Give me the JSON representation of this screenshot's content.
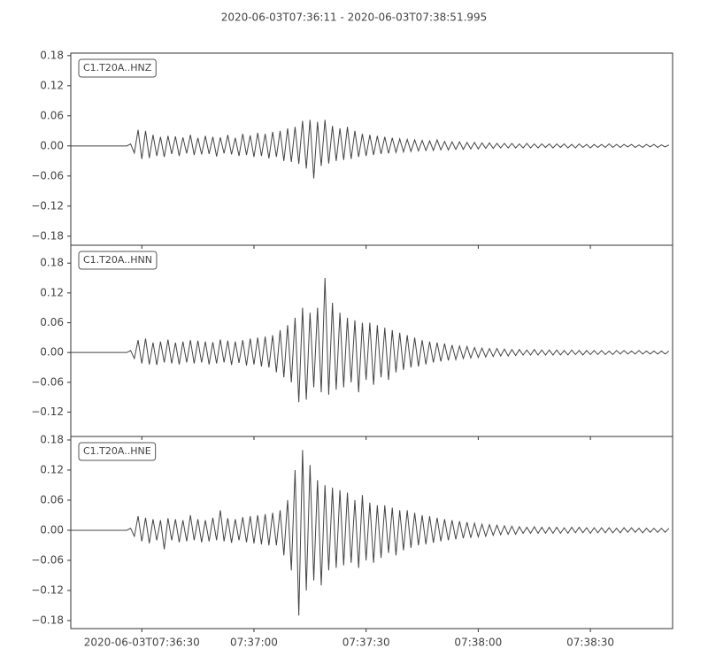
{
  "chart_data": {
    "type": "line",
    "title": "2020-06-03T07:36:11  -  2020-06-03T07:38:51.995",
    "xlim": [
      "07:36:11",
      "07:38:51.995"
    ],
    "xticks": [
      {
        "value": "07:36:30",
        "label": "2020-06-03T07:36:30"
      },
      {
        "value": "07:37:00",
        "label": "07:37:00"
      },
      {
        "value": "07:37:30",
        "label": "07:37:30"
      },
      {
        "value": "07:38:00",
        "label": "07:38:00"
      },
      {
        "value": "07:38:30",
        "label": "07:38:30"
      }
    ],
    "x": [
      "07:36:11",
      "07:36:12",
      "07:36:13",
      "07:36:14",
      "07:36:15",
      "07:36:16",
      "07:36:17",
      "07:36:18",
      "07:36:19",
      "07:36:20",
      "07:36:21",
      "07:36:22",
      "07:36:23",
      "07:36:24",
      "07:36:25",
      "07:36:26",
      "07:36:27",
      "07:36:28",
      "07:36:29",
      "07:36:30",
      "07:36:31",
      "07:36:32",
      "07:36:33",
      "07:36:34",
      "07:36:35",
      "07:36:36",
      "07:36:37",
      "07:36:38",
      "07:36:39",
      "07:36:40",
      "07:36:41",
      "07:36:42",
      "07:36:43",
      "07:36:44",
      "07:36:45",
      "07:36:46",
      "07:36:47",
      "07:36:48",
      "07:36:49",
      "07:36:50",
      "07:36:51",
      "07:36:52",
      "07:36:53",
      "07:36:54",
      "07:36:55",
      "07:36:56",
      "07:36:57",
      "07:36:58",
      "07:36:59",
      "07:37:00",
      "07:37:01",
      "07:37:02",
      "07:37:03",
      "07:37:04",
      "07:37:05",
      "07:37:06",
      "07:37:07",
      "07:37:08",
      "07:37:09",
      "07:37:10",
      "07:37:11",
      "07:37:12",
      "07:37:13",
      "07:37:14",
      "07:37:15",
      "07:37:16",
      "07:37:17",
      "07:37:18",
      "07:37:19",
      "07:37:20",
      "07:37:21",
      "07:37:22",
      "07:37:23",
      "07:37:24",
      "07:37:25",
      "07:37:26",
      "07:37:27",
      "07:37:28",
      "07:37:29",
      "07:37:30",
      "07:37:31",
      "07:37:32",
      "07:37:33",
      "07:37:34",
      "07:37:35",
      "07:37:36",
      "07:37:37",
      "07:37:38",
      "07:37:39",
      "07:37:40",
      "07:37:41",
      "07:37:42",
      "07:37:43",
      "07:37:44",
      "07:37:45",
      "07:37:46",
      "07:37:47",
      "07:37:48",
      "07:37:49",
      "07:37:50",
      "07:37:51",
      "07:37:52",
      "07:37:53",
      "07:37:54",
      "07:37:55",
      "07:37:56",
      "07:37:57",
      "07:37:58",
      "07:37:59",
      "07:38:00",
      "07:38:01",
      "07:38:02",
      "07:38:03",
      "07:38:04",
      "07:38:05",
      "07:38:06",
      "07:38:07",
      "07:38:08",
      "07:38:09",
      "07:38:10",
      "07:38:11",
      "07:38:12",
      "07:38:13",
      "07:38:14",
      "07:38:15",
      "07:38:16",
      "07:38:17",
      "07:38:18",
      "07:38:19",
      "07:38:20",
      "07:38:21",
      "07:38:22",
      "07:38:23",
      "07:38:24",
      "07:38:25",
      "07:38:26",
      "07:38:27",
      "07:38:28",
      "07:38:29",
      "07:38:30",
      "07:38:31",
      "07:38:32",
      "07:38:33",
      "07:38:34",
      "07:38:35",
      "07:38:36",
      "07:38:37",
      "07:38:38",
      "07:38:39",
      "07:38:40",
      "07:38:41",
      "07:38:42",
      "07:38:43",
      "07:38:44",
      "07:38:45",
      "07:38:46",
      "07:38:47",
      "07:38:48",
      "07:38:49",
      "07:38:50",
      "07:38:51"
    ],
    "series": [
      {
        "name": "C1.T20A..HNZ",
        "color": "#444444",
        "ylim": [
          -0.198,
          0.185
        ],
        "yticks": [
          0.18,
          0.12,
          0.06,
          {
            "value": 0,
            "label": "0.00"
          },
          {
            "value": -0.06,
            "label": "−0.06"
          },
          {
            "value": -0.12,
            "label": "−0.12"
          },
          {
            "value": -0.18,
            "label": "−0.18"
          }
        ],
        "values": [
          0,
          0,
          0,
          0,
          0,
          0,
          0,
          0,
          0,
          0,
          0,
          0,
          0,
          0,
          0,
          0,
          0.004,
          -0.014,
          0.032,
          -0.026,
          0.03,
          -0.024,
          0.022,
          -0.02,
          0.018,
          -0.022,
          0.02,
          -0.016,
          0.019,
          -0.02,
          0.017,
          -0.015,
          0.022,
          -0.018,
          0.016,
          -0.017,
          0.02,
          -0.016,
          0.018,
          -0.021,
          0.017,
          -0.015,
          0.022,
          -0.017,
          0.016,
          -0.02,
          0.024,
          -0.018,
          0.021,
          -0.022,
          0.026,
          -0.02,
          0.024,
          -0.025,
          0.028,
          -0.022,
          0.03,
          -0.03,
          0.035,
          -0.032,
          0.038,
          -0.036,
          0.05,
          -0.045,
          0.052,
          -0.065,
          0.048,
          -0.04,
          0.052,
          -0.035,
          0.04,
          -0.03,
          0.035,
          -0.028,
          0.038,
          -0.026,
          0.03,
          -0.022,
          0.024,
          -0.02,
          0.022,
          -0.018,
          0.02,
          -0.016,
          0.018,
          -0.015,
          0.016,
          -0.013,
          0.014,
          -0.012,
          0.013,
          -0.011,
          0.012,
          -0.01,
          0.011,
          -0.009,
          0.01,
          -0.009,
          0.012,
          -0.008,
          0.009,
          -0.008,
          0.008,
          -0.007,
          0.008,
          -0.007,
          0.007,
          -0.006,
          0.007,
          -0.006,
          0.006,
          -0.005,
          0.006,
          -0.005,
          0.005,
          -0.004,
          0.005,
          -0.004,
          0.005,
          -0.004,
          0.004,
          -0.004,
          0.005,
          -0.004,
          0.004,
          -0.004,
          0.004,
          -0.003,
          0.004,
          -0.004,
          0.004,
          -0.003,
          0.004,
          -0.004,
          0.003,
          -0.004,
          0.004,
          -0.003,
          0.003,
          -0.004,
          0.003,
          -0.003,
          0.003,
          -0.003,
          0.004,
          -0.003,
          0.003,
          -0.003,
          0.003,
          -0.002,
          0.003,
          -0.003,
          0.002,
          -0.003,
          0.003,
          -0.002,
          0.003,
          -0.003,
          0.002,
          -0.002,
          0.002
        ]
      },
      {
        "name": "C1.T20A..HNN",
        "color": "#444444",
        "ylim": [
          -0.169,
          0.216
        ],
        "yticks": [
          0.18,
          0.12,
          0.06,
          {
            "value": 0,
            "label": "0.00"
          },
          {
            "value": -0.06,
            "label": "−0.06"
          },
          {
            "value": -0.12,
            "label": "−0.12"
          }
        ],
        "values": [
          0,
          0,
          0,
          0,
          0,
          0,
          0,
          0,
          0,
          0,
          0,
          0,
          0,
          0,
          0,
          0,
          0.004,
          -0.012,
          0.025,
          -0.022,
          0.028,
          -0.024,
          0.02,
          -0.025,
          0.022,
          -0.02,
          0.026,
          -0.022,
          0.02,
          -0.024,
          0.022,
          -0.02,
          0.025,
          -0.022,
          0.024,
          -0.02,
          0.022,
          -0.024,
          0.021,
          -0.022,
          0.026,
          -0.02,
          0.024,
          -0.025,
          0.022,
          -0.021,
          0.025,
          -0.026,
          0.028,
          -0.024,
          0.03,
          -0.028,
          0.032,
          -0.03,
          0.035,
          -0.04,
          0.045,
          -0.05,
          0.055,
          -0.06,
          0.07,
          -0.1,
          0.09,
          -0.095,
          0.08,
          -0.07,
          0.09,
          -0.08,
          0.15,
          -0.085,
          0.1,
          -0.075,
          0.08,
          -0.07,
          0.07,
          -0.06,
          0.065,
          -0.08,
          0.06,
          -0.055,
          0.06,
          -0.065,
          0.055,
          -0.05,
          0.05,
          -0.055,
          0.045,
          -0.04,
          0.04,
          -0.035,
          0.035,
          -0.03,
          0.03,
          -0.028,
          0.025,
          -0.024,
          0.022,
          -0.02,
          0.02,
          -0.018,
          0.018,
          -0.016,
          0.015,
          -0.014,
          0.013,
          -0.012,
          0.012,
          -0.011,
          0.01,
          -0.01,
          0.009,
          -0.009,
          0.008,
          -0.008,
          0.008,
          -0.007,
          0.007,
          -0.007,
          0.006,
          -0.006,
          0.006,
          -0.005,
          0.005,
          -0.005,
          0.006,
          -0.005,
          0.005,
          -0.005,
          0.005,
          -0.005,
          0.005,
          -0.005,
          0.004,
          -0.005,
          0.005,
          -0.004,
          0.004,
          -0.005,
          0.004,
          -0.004,
          0.004,
          -0.004,
          0.004,
          -0.004,
          0.003,
          -0.004,
          0.004,
          -0.003,
          0.004,
          -0.003,
          0.003,
          -0.003,
          0.004,
          -0.003,
          0.003,
          -0.003,
          0.003,
          -0.003,
          0.003,
          -0.003,
          0.003
        ]
      },
      {
        "name": "C1.T20A..HNE",
        "color": "#444444",
        "ylim": [
          -0.196,
          0.187
        ],
        "yticks": [
          0.18,
          0.12,
          0.06,
          {
            "value": 0,
            "label": "0.00"
          },
          {
            "value": -0.06,
            "label": "−0.06"
          },
          {
            "value": -0.12,
            "label": "−0.12"
          },
          {
            "value": -0.18,
            "label": "−0.18"
          }
        ],
        "values": [
          0,
          0,
          0,
          0,
          0,
          0,
          0,
          0,
          0,
          0,
          0,
          0,
          0,
          0,
          0,
          0,
          0.004,
          -0.012,
          0.028,
          -0.022,
          0.025,
          -0.026,
          0.022,
          -0.02,
          0.02,
          -0.038,
          0.024,
          -0.02,
          0.022,
          -0.024,
          0.02,
          -0.022,
          0.03,
          -0.02,
          0.022,
          -0.024,
          0.02,
          -0.022,
          0.025,
          -0.02,
          0.04,
          -0.022,
          0.024,
          -0.025,
          0.022,
          -0.02,
          0.026,
          -0.024,
          0.028,
          -0.026,
          0.03,
          -0.028,
          0.032,
          -0.03,
          0.035,
          -0.03,
          0.04,
          -0.05,
          0.06,
          -0.08,
          0.12,
          -0.17,
          0.16,
          -0.12,
          0.13,
          -0.1,
          0.1,
          -0.11,
          0.09,
          -0.08,
          0.085,
          -0.075,
          0.08,
          -0.07,
          0.075,
          -0.065,
          0.06,
          -0.075,
          0.07,
          -0.06,
          0.055,
          -0.065,
          0.05,
          -0.055,
          0.05,
          -0.045,
          0.045,
          -0.05,
          0.04,
          -0.04,
          0.04,
          -0.035,
          0.035,
          -0.03,
          0.03,
          -0.028,
          0.028,
          -0.025,
          0.025,
          -0.022,
          0.022,
          -0.02,
          0.02,
          -0.018,
          0.018,
          -0.016,
          0.016,
          -0.015,
          0.014,
          -0.013,
          0.012,
          -0.012,
          0.011,
          -0.01,
          0.01,
          -0.009,
          0.009,
          -0.008,
          0.008,
          -0.008,
          0.007,
          -0.006,
          0.006,
          -0.006,
          0.007,
          -0.006,
          0.006,
          -0.006,
          0.006,
          -0.006,
          0.006,
          -0.006,
          0.005,
          -0.006,
          0.006,
          -0.005,
          0.006,
          -0.005,
          0.005,
          -0.006,
          0.005,
          -0.005,
          0.005,
          -0.005,
          0.005,
          -0.005,
          0.004,
          -0.005,
          0.005,
          -0.004,
          0.005,
          -0.004,
          0.004,
          -0.005,
          0.004,
          -0.004,
          0.004,
          -0.004,
          0.004,
          -0.004,
          0.004
        ]
      }
    ]
  }
}
